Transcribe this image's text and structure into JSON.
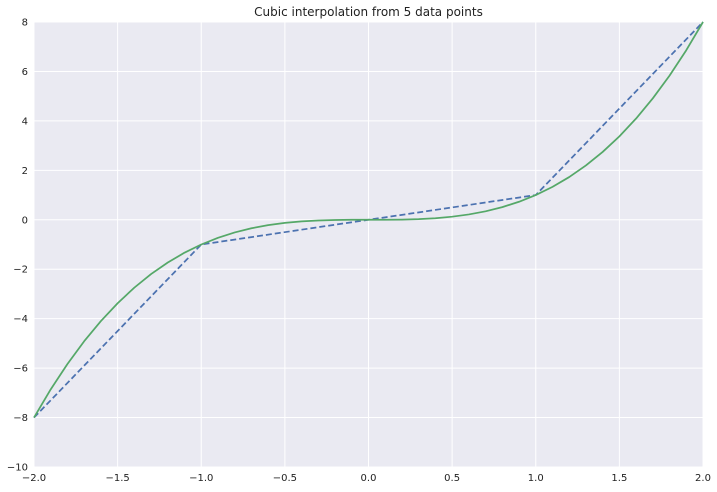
{
  "chart_data": {
    "type": "line",
    "title": "Cubic interpolation from 5 data points",
    "xlabel": "",
    "ylabel": "",
    "xlim": [
      -2.0,
      2.0
    ],
    "ylim": [
      -10,
      8
    ],
    "grid": true,
    "x_ticks": [
      -2.0,
      -1.5,
      -1.0,
      -0.5,
      0.0,
      0.5,
      1.0,
      1.5,
      2.0
    ],
    "x_tick_labels": [
      "−2.0",
      "−1.5",
      "−1.0",
      "−0.5",
      "0.0",
      "0.5",
      "1.0",
      "1.5",
      "2.0"
    ],
    "y_ticks": [
      -10,
      -8,
      -6,
      -4,
      -2,
      0,
      2,
      4,
      6,
      8
    ],
    "y_tick_labels": [
      "−10",
      "−8",
      "−6",
      "−4",
      "−2",
      "0",
      "2",
      "4",
      "6",
      "8"
    ],
    "series": [
      {
        "style": "dashed",
        "color": "#4c72b0",
        "x": [
          -2,
          -1,
          0,
          1,
          2
        ],
        "y": [
          -8,
          -1,
          0,
          1,
          8
        ]
      },
      {
        "style": "solid",
        "color": "#55a868",
        "x": [
          -2.0,
          -1.9,
          -1.8,
          -1.7,
          -1.6,
          -1.5,
          -1.4,
          -1.3,
          -1.2,
          -1.1,
          -1.0,
          -0.9,
          -0.8,
          -0.7,
          -0.6,
          -0.5,
          -0.4,
          -0.3,
          -0.2,
          -0.1,
          0.0,
          0.1,
          0.2,
          0.3,
          0.4,
          0.5,
          0.6,
          0.7,
          0.8,
          0.9,
          1.0,
          1.1,
          1.2,
          1.3,
          1.4,
          1.5,
          1.6,
          1.7,
          1.8,
          1.9,
          2.0
        ],
        "y": [
          -8.0,
          -6.859,
          -5.832,
          -4.913,
          -4.096,
          -3.375,
          -2.744,
          -2.197,
          -1.728,
          -1.331,
          -1.0,
          -0.729,
          -0.512,
          -0.343,
          -0.216,
          -0.125,
          -0.064,
          -0.027,
          -0.008,
          -0.001,
          0.0,
          0.001,
          0.008,
          0.027,
          0.064,
          0.125,
          0.216,
          0.343,
          0.512,
          0.729,
          1.0,
          1.331,
          1.728,
          2.197,
          2.744,
          3.375,
          4.096,
          4.913,
          5.832,
          6.859,
          8.0
        ]
      }
    ]
  }
}
